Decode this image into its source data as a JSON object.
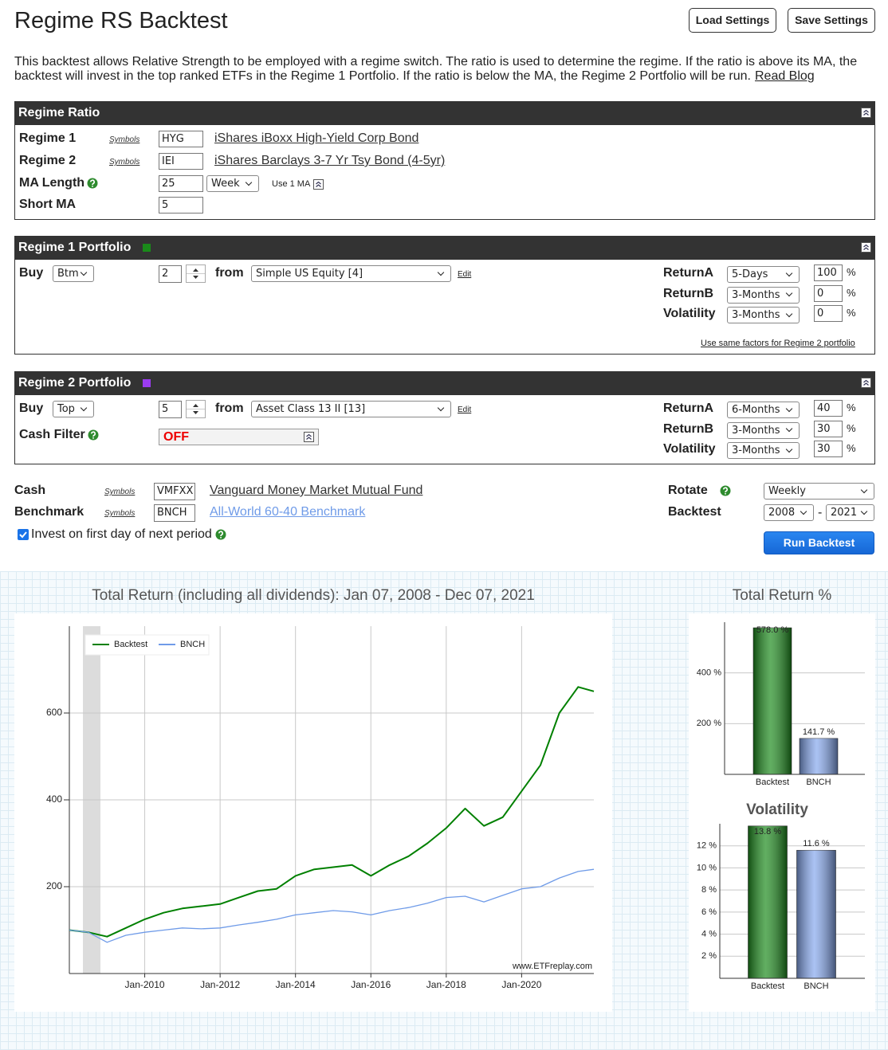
{
  "header": {
    "title": "Regime RS Backtest",
    "buttons": [
      "Load Settings",
      "Save Settings"
    ],
    "description": "This backtest allows Relative Strength to be employed with a regime switch. The ratio is used to determine the regime. If the ratio is above its MA, the backtest will invest in the top ranked ETFs in the Regime 1 Portfolio. If the ratio is below the MA, the Regime 2 Portfolio will be run.",
    "read_blog": "Read Blog"
  },
  "regime_ratio": {
    "title": "Regime Ratio",
    "regimes": [
      {
        "label": "Regime 1",
        "symbols": "Symbols",
        "symbol": "HYG",
        "name": "iShares iBoxx High-Yield Corp Bond"
      },
      {
        "label": "Regime 2",
        "symbols": "Symbols",
        "symbol": "IEI",
        "name": "iShares Barclays 3-7 Yr Tsy Bond (4-5yr)"
      }
    ],
    "ma_length": {
      "label": "MA Length",
      "value": 25,
      "period": "Week",
      "use_one": "Use 1 MA"
    },
    "short_ma": {
      "label": "Short MA",
      "value": 5
    }
  },
  "portfolios": [
    {
      "title": "Regime 1 Portfolio",
      "color": "#1a8a1a",
      "buy": "Buy",
      "rank": "Btm",
      "count": 2,
      "from": "from",
      "universe": "Simple US Equity [4]",
      "edit": "Edit",
      "factors": [
        {
          "label": "ReturnA",
          "period": "5-Days",
          "weight": 100,
          "unit": "%"
        },
        {
          "label": "ReturnB",
          "period": "3-Months",
          "weight": 0,
          "unit": "%"
        },
        {
          "label": "Volatility",
          "period": "3-Months",
          "weight": 0,
          "unit": "%"
        }
      ],
      "same_factors": "Use same factors for Regime 2 portfolio"
    },
    {
      "title": "Regime 2 Portfolio",
      "color": "#9b3cf0",
      "buy": "Buy",
      "rank": "Top",
      "count": 5,
      "from": "from",
      "universe": "Asset Class 13 II [13]",
      "edit": "Edit",
      "cash_filter": {
        "label": "Cash Filter",
        "value": "OFF"
      },
      "factors": [
        {
          "label": "ReturnA",
          "period": "6-Months",
          "weight": 40,
          "unit": "%"
        },
        {
          "label": "ReturnB",
          "period": "3-Months",
          "weight": 30,
          "unit": "%"
        },
        {
          "label": "Volatility",
          "period": "3-Months",
          "weight": 30,
          "unit": "%"
        }
      ]
    }
  ],
  "settings": {
    "cash": {
      "label": "Cash",
      "symbols": "Symbols",
      "symbol": "VMFXX",
      "name": "Vanguard Money Market Mutual Fund"
    },
    "benchmark": {
      "label": "Benchmark",
      "symbols": "Symbols",
      "symbol": "BNCH",
      "name": "All-World 60-40 Benchmark"
    },
    "invest_first_day": "Invest on first day of next period",
    "rotate": {
      "label": "Rotate",
      "value": "Weekly"
    },
    "backtest": {
      "label": "Backtest",
      "from": 2008,
      "separator": "-",
      "to": 2021
    },
    "run": "Run Backtest"
  },
  "chart_data": [
    {
      "type": "line",
      "title": "Total Return (including all dividends): Jan 07, 2008 - Dec 07, 2021",
      "x": [
        "Jan-2008",
        "Jul-2008",
        "Jan-2009",
        "Jul-2009",
        "Jan-2010",
        "Jul-2010",
        "Jan-2011",
        "Jul-2011",
        "Jan-2012",
        "Jul-2012",
        "Jan-2013",
        "Jul-2013",
        "Jan-2014",
        "Jul-2014",
        "Jan-2015",
        "Jul-2015",
        "Jan-2016",
        "Jul-2016",
        "Jan-2017",
        "Jul-2017",
        "Jan-2018",
        "Jul-2018",
        "Jan-2019",
        "Jul-2019",
        "Jan-2020",
        "Jul-2020",
        "Jan-2021",
        "Jul-2021",
        "Dec-2021"
      ],
      "series": [
        {
          "name": "Backtest",
          "color": "#008000",
          "values": [
            100,
            95,
            85,
            105,
            125,
            140,
            150,
            155,
            160,
            175,
            190,
            195,
            225,
            240,
            245,
            250,
            225,
            250,
            270,
            300,
            335,
            380,
            340,
            360,
            420,
            480,
            600,
            660,
            650
          ]
        },
        {
          "name": "BNCH",
          "color": "#6f9be8",
          "values": [
            100,
            95,
            72,
            88,
            95,
            100,
            105,
            103,
            105,
            112,
            118,
            125,
            135,
            140,
            145,
            142,
            135,
            145,
            152,
            162,
            175,
            178,
            165,
            180,
            195,
            200,
            220,
            235,
            240
          ]
        }
      ],
      "xlim": [
        "Jan-2008",
        "Dec-2021"
      ],
      "xticks": [
        "Jan-2010",
        "Jan-2012",
        "Jan-2014",
        "Jan-2016",
        "Jan-2018",
        "Jan-2020"
      ],
      "ylim": [
        0,
        800
      ],
      "yticks": [
        200,
        400,
        600
      ],
      "grid": true,
      "legend": "upper left",
      "watermark": "www.ETFreplay.com"
    },
    {
      "type": "bar",
      "title": "Total Return %",
      "categories": [
        "Backtest",
        "BNCH"
      ],
      "values": [
        578.0,
        141.7
      ],
      "value_labels": [
        "578.0 %",
        "141.7 %"
      ],
      "colors": [
        "#1e8c1e",
        "#86a8ee"
      ],
      "ylim": [
        0,
        600
      ],
      "yticks": [
        {
          "value": 200,
          "label": "200 %"
        },
        {
          "value": 400,
          "label": "400 %"
        }
      ],
      "grid": true
    },
    {
      "type": "bar",
      "title": "Volatility",
      "categories": [
        "Backtest",
        "BNCH"
      ],
      "values": [
        13.8,
        11.6
      ],
      "value_labels": [
        "13.8 %",
        "11.6 %"
      ],
      "colors": [
        "#1e8c1e",
        "#86a8ee"
      ],
      "ylim": [
        0,
        14
      ],
      "yticks": [
        {
          "value": 2,
          "label": "2 %"
        },
        {
          "value": 4,
          "label": "4 %"
        },
        {
          "value": 6,
          "label": "6 %"
        },
        {
          "value": 8,
          "label": "8 %"
        },
        {
          "value": 10,
          "label": "10 %"
        },
        {
          "value": 12,
          "label": "12 %"
        }
      ],
      "grid": true
    }
  ]
}
